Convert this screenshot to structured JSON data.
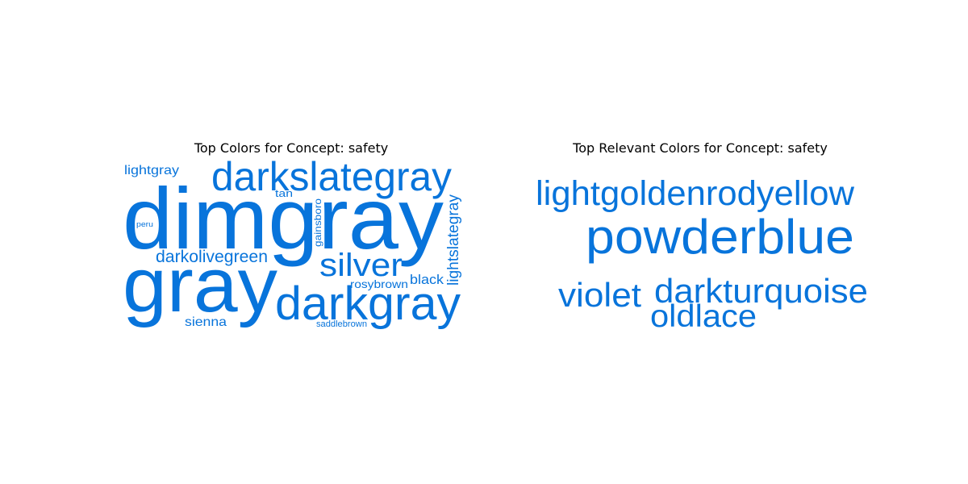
{
  "accent_color": "#0874db",
  "chart_data": [
    {
      "type": "wordcloud",
      "title": "Top Colors for Concept: safety",
      "words": [
        {
          "text": "dimgray",
          "rank": 1
        },
        {
          "text": "gray",
          "rank": 2
        },
        {
          "text": "darkgray",
          "rank": 3
        },
        {
          "text": "darkslategray",
          "rank": 4
        },
        {
          "text": "silver",
          "rank": 5
        },
        {
          "text": "darkolivegreen",
          "rank": 6
        },
        {
          "text": "lightslategray",
          "rank": 7
        },
        {
          "text": "lightgray",
          "rank": 8
        },
        {
          "text": "black",
          "rank": 9
        },
        {
          "text": "sienna",
          "rank": 10
        },
        {
          "text": "rosybrown",
          "rank": 11
        },
        {
          "text": "gainsboro",
          "rank": 12
        },
        {
          "text": "tan",
          "rank": 13
        },
        {
          "text": "saddlebrown",
          "rank": 14
        },
        {
          "text": "peru",
          "rank": 15
        }
      ]
    },
    {
      "type": "wordcloud",
      "title": "Top Relevant Colors for Concept: safety",
      "words": [
        {
          "text": "powderblue",
          "rank": 1
        },
        {
          "text": "lightgoldenrodyellow",
          "rank": 2
        },
        {
          "text": "darkturquoise",
          "rank": 3
        },
        {
          "text": "violet",
          "rank": 4
        },
        {
          "text": "oldlace",
          "rank": 5
        }
      ]
    }
  ]
}
